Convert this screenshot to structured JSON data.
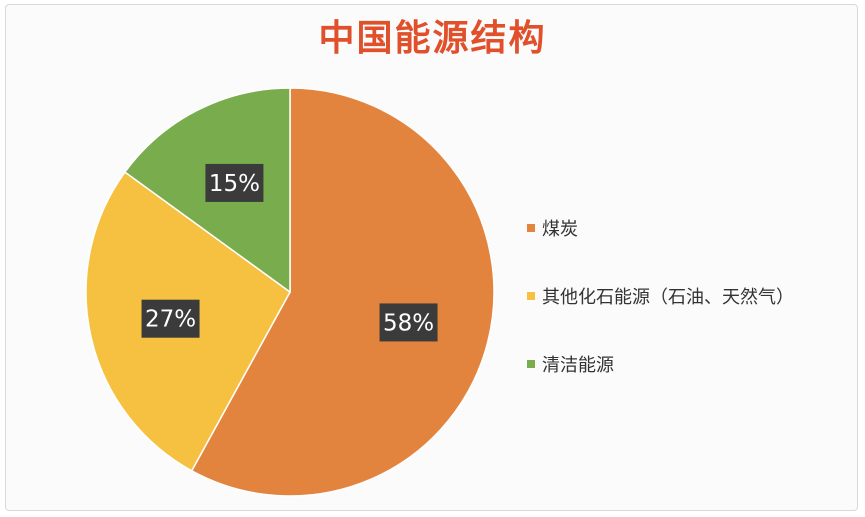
{
  "chart_data": {
    "type": "pie",
    "title": "中国能源结构",
    "title_color": "#e0502b",
    "slices": [
      {
        "name": "煤炭",
        "value": 58,
        "label": "58%",
        "color": "#e3843e"
      },
      {
        "name": "其他化石能源（石油、天然气）",
        "value": 27,
        "label": "27%",
        "color": "#f6c040"
      },
      {
        "name": "清洁能源",
        "value": 15,
        "label": "15%",
        "color": "#78ac4c"
      }
    ],
    "start_angle_deg": 0,
    "direction": "clockwise",
    "legend_position": "right",
    "data_label_style": {
      "background": "#3b3b3b",
      "text": "#ffffff"
    }
  }
}
